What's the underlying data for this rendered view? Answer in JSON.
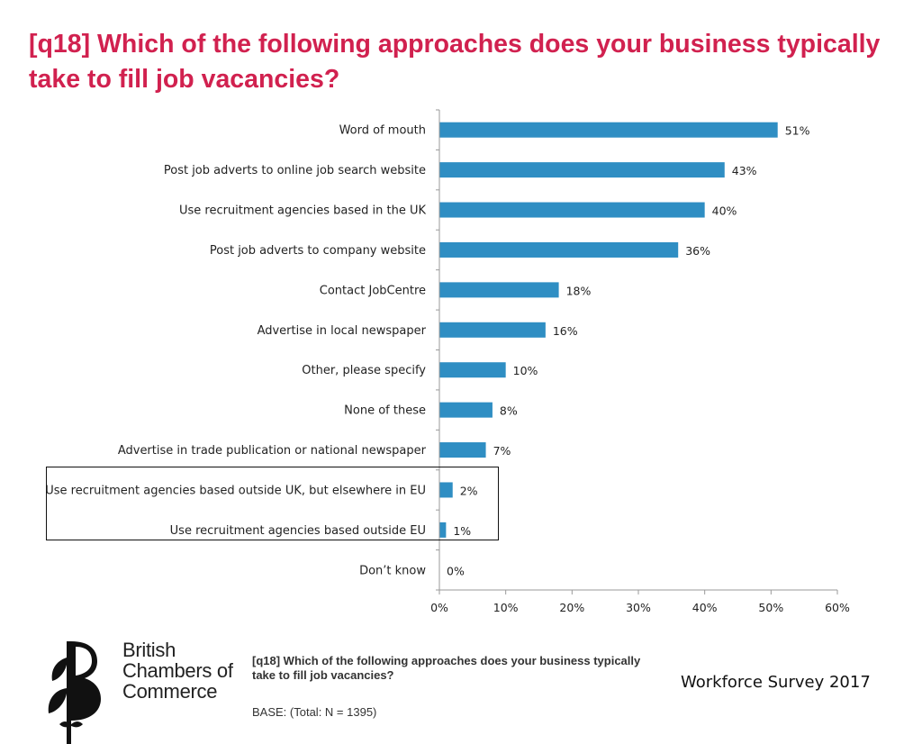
{
  "title": "[q18] Which of the following approaches does your business typically take to fill job vacancies?",
  "chart_data": {
    "type": "bar",
    "orientation": "horizontal",
    "categories": [
      "Word of mouth",
      "Post job adverts to online job search website",
      "Use recruitment agencies based in the UK",
      "Post job adverts to company website",
      "Contact JobCentre",
      "Advertise in local newspaper",
      "Other, please specify",
      "None of these",
      "Advertise in trade publication or national newspaper",
      "Use recruitment agencies based outside UK, but elsewhere in EU",
      "Use recruitment agencies based outside EU",
      "Don’t know"
    ],
    "values": [
      51,
      43,
      40,
      36,
      18,
      16,
      10,
      8,
      7,
      2,
      1,
      0
    ],
    "value_labels": [
      "51%",
      "43%",
      "40%",
      "36%",
      "18%",
      "16%",
      "10%",
      "8%",
      "7%",
      "2%",
      "1%",
      "0%"
    ],
    "xlim": [
      0,
      60
    ],
    "x_ticks": [
      0,
      10,
      20,
      30,
      40,
      50,
      60
    ],
    "x_tick_labels": [
      "0%",
      "10%",
      "20%",
      "30%",
      "40%",
      "50%",
      "60%"
    ],
    "bar_color": "#2f8ec3",
    "highlighted_categories": [
      "Use recruitment agencies based outside UK, but elsewhere in EU",
      "Use recruitment agencies based outside EU"
    ],
    "grid": false,
    "legend": "none"
  },
  "logo": {
    "line1": "British",
    "line2": "Chambers of",
    "line3": "Commerce"
  },
  "footnote": {
    "question": "[q18] Which of the following approaches does your business typically take to fill job vacancies?",
    "base": "BASE: (Total: N = 1395)"
  },
  "survey_name": "Workforce Survey 2017",
  "colors": {
    "title": "#d1214f",
    "bar": "#2f8ec3"
  }
}
